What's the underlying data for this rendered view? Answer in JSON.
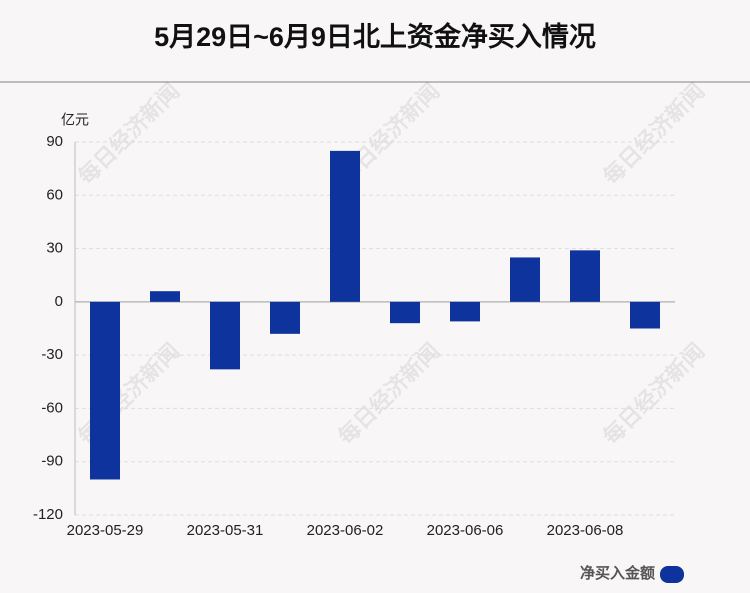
{
  "chart_data": {
    "type": "bar",
    "title": "5月29日~6月9日北上资金净买入情况",
    "y_label": "亿元",
    "watermark": "每日经济新闻",
    "categories": [
      "2023-05-29",
      null,
      "2023-05-31",
      null,
      "2023-06-02",
      null,
      "2023-06-06",
      null,
      "2023-06-08",
      null
    ],
    "series": [
      {
        "name": "净买入金额",
        "color": "#0f339c",
        "values": [
          -100,
          6,
          -38,
          -18,
          85,
          -12,
          -11,
          25,
          29,
          -15
        ]
      }
    ],
    "ylim": [
      -120,
      90
    ],
    "yticks": [
      -120,
      -90,
      -60,
      -30,
      0,
      30,
      60,
      90
    ],
    "grid": true,
    "legend": "bottom-right"
  }
}
